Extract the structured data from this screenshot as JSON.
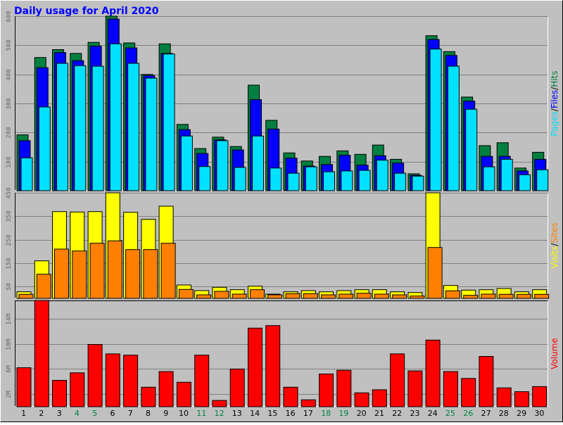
{
  "colors": {
    "bg": "#c0c0c0",
    "title": "#0000ff",
    "hits": "#008040",
    "files": "#0000ff",
    "pages": "#00e0ff",
    "visits": "#ffff00",
    "sites": "#ff8000",
    "volume": "#ff0000",
    "weekend": "#008040",
    "weekday": "#000000",
    "axis_text": "#808080"
  },
  "chart_data": {
    "type": "bar",
    "title": "Daily usage for April 2020",
    "categories": [
      "1",
      "2",
      "3",
      "4",
      "5",
      "6",
      "7",
      "8",
      "9",
      "10",
      "11",
      "12",
      "13",
      "14",
      "15",
      "16",
      "17",
      "18",
      "19",
      "20",
      "21",
      "22",
      "23",
      "24",
      "25",
      "26",
      "27",
      "28",
      "29",
      "30"
    ],
    "weekend_days": [
      "4",
      "5",
      "11",
      "12",
      "18",
      "19",
      "25",
      "26"
    ],
    "panels": [
      {
        "id": "hits-files-pages",
        "side_label": [
          "Pages",
          "/",
          "Files",
          "/",
          "Hits"
        ],
        "ylim": [
          0,
          600
        ],
        "yticks": [
          "100",
          "200",
          "300",
          "400",
          "500",
          "600"
        ],
        "series": [
          {
            "name": "Hits",
            "values": [
              192,
              458,
              485,
              472,
              510,
              600,
              508,
              400,
              505,
              228,
              145,
              184,
              152,
              363,
              242,
              130,
              102,
              118,
              137,
              125,
              157,
              108,
              58,
              533,
              478,
              322,
              155,
              165,
              78,
              132
            ]
          },
          {
            "name": "Files",
            "values": [
              172,
              423,
              475,
              447,
              497,
              590,
              491,
              396,
              472,
              210,
              128,
              175,
              140,
              313,
              212,
              112,
              85,
              90,
              122,
              88,
              120,
              95,
              53,
              520,
              465,
              308,
              118,
              118,
              68,
              108
            ]
          },
          {
            "name": "Pages",
            "values": [
              113,
              288,
              438,
              430,
              428,
              505,
              438,
              387,
              470,
              188,
              83,
              172,
              80,
              188,
              78,
              60,
              82,
              65,
              68,
              70,
              105,
              60,
              50,
              487,
              428,
              280,
              82,
              108,
              55,
              72
            ]
          }
        ]
      },
      {
        "id": "visits-sites",
        "side_label": [
          "Visits",
          "/",
          "Sites"
        ],
        "ylim": [
          0,
          450
        ],
        "yticks": [
          "50",
          "150",
          "250",
          "350",
          "450"
        ],
        "series": [
          {
            "name": "Visits",
            "values": [
              28,
              160,
              370,
              368,
              370,
              450,
              367,
              337,
              393,
              57,
              33,
              47,
              37,
              52,
              18,
              28,
              33,
              28,
              33,
              37,
              37,
              28,
              25,
              450,
              55,
              35,
              37,
              42,
              28,
              37
            ]
          },
          {
            "name": "Sites",
            "values": [
              17,
              103,
              210,
              202,
              235,
              245,
              208,
              208,
              235,
              38,
              15,
              30,
              18,
              37,
              15,
              20,
              20,
              15,
              18,
              22,
              18,
              15,
              10,
              217,
              32,
              13,
              18,
              17,
              17,
              17
            ]
          }
        ]
      },
      {
        "id": "volume",
        "side_label": [
          "Volume"
        ],
        "ylim": [
          0,
          16.9
        ],
        "yticks": [
          "2M",
          "6M",
          "10M",
          "14M"
        ],
        "series": [
          {
            "name": "Volume",
            "values": [
              6.2,
              16.9,
              4.2,
              5.4,
              9.9,
              8.4,
              8.2,
              3.1,
              5.6,
              3.9,
              8.2,
              1,
              6,
              12.5,
              12.9,
              3.1,
              1.1,
              5.2,
              5.8,
              2.2,
              2.7,
              8.4,
              5.7,
              10.6,
              5.6,
              4.5,
              8.0,
              3.0,
              2.4,
              3.2
            ]
          }
        ]
      }
    ]
  }
}
